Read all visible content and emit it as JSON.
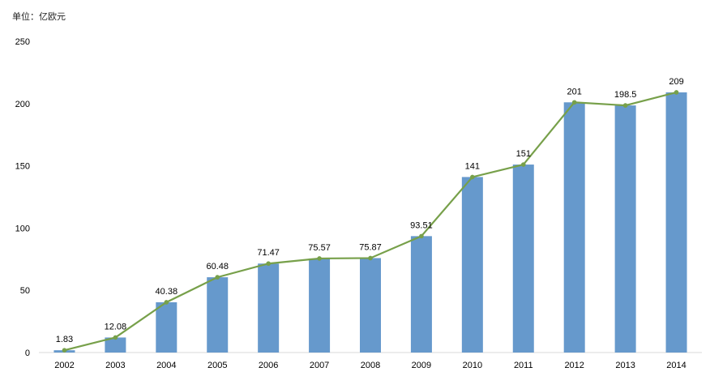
{
  "unit_label": "单位：亿欧元",
  "chart_data": {
    "type": "bar",
    "categories": [
      "2002",
      "2003",
      "2004",
      "2005",
      "2006",
      "2007",
      "2008",
      "2009",
      "2010",
      "2011",
      "2012",
      "2013",
      "2014"
    ],
    "values": [
      1.83,
      12.08,
      40.38,
      60.48,
      71.47,
      75.57,
      75.87,
      93.51,
      141,
      151,
      201,
      198.5,
      209
    ],
    "value_labels": [
      "1.83",
      "12.08",
      "40.38",
      "60.48",
      "71.47",
      "75.57",
      "75.87",
      "93.51",
      "141",
      "151",
      "201",
      "198.5",
      "209"
    ],
    "overlay_line": true,
    "ylim": [
      0,
      250
    ],
    "yticks": [
      0,
      50,
      100,
      150,
      200,
      250
    ],
    "grid": false,
    "legend": "none",
    "colors": {
      "bar": "#6699CC",
      "line": "#77A04A",
      "axis": "#D9D9D9",
      "text": "#000000"
    }
  }
}
